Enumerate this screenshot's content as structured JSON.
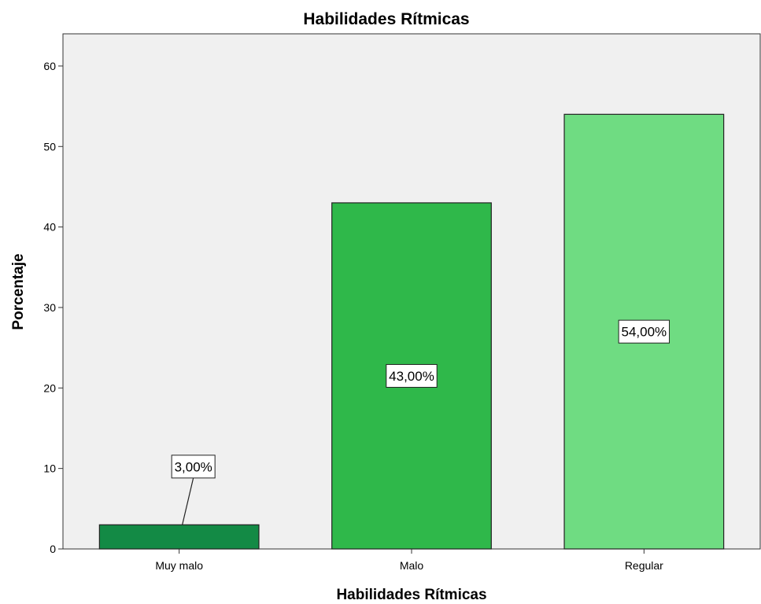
{
  "chart_data": {
    "type": "bar",
    "title": "Habilidades Rítmicas",
    "xlabel": "Habilidades Rítmicas",
    "ylabel": "Porcentaje",
    "categories": [
      "Muy malo",
      "Malo",
      "Regular"
    ],
    "values": [
      3,
      43,
      54
    ],
    "data_labels": [
      "3,00%",
      "43,00%",
      "54,00%"
    ],
    "ylim": [
      0,
      64
    ],
    "yticks": [
      0,
      10,
      20,
      30,
      40,
      50,
      60
    ],
    "grid": false,
    "legend": "none",
    "colors": [
      "#138a45",
      "#2fb84a",
      "#6fdc82"
    ],
    "plot_background": "#f0f0f0",
    "bar_outline": "#222222"
  }
}
